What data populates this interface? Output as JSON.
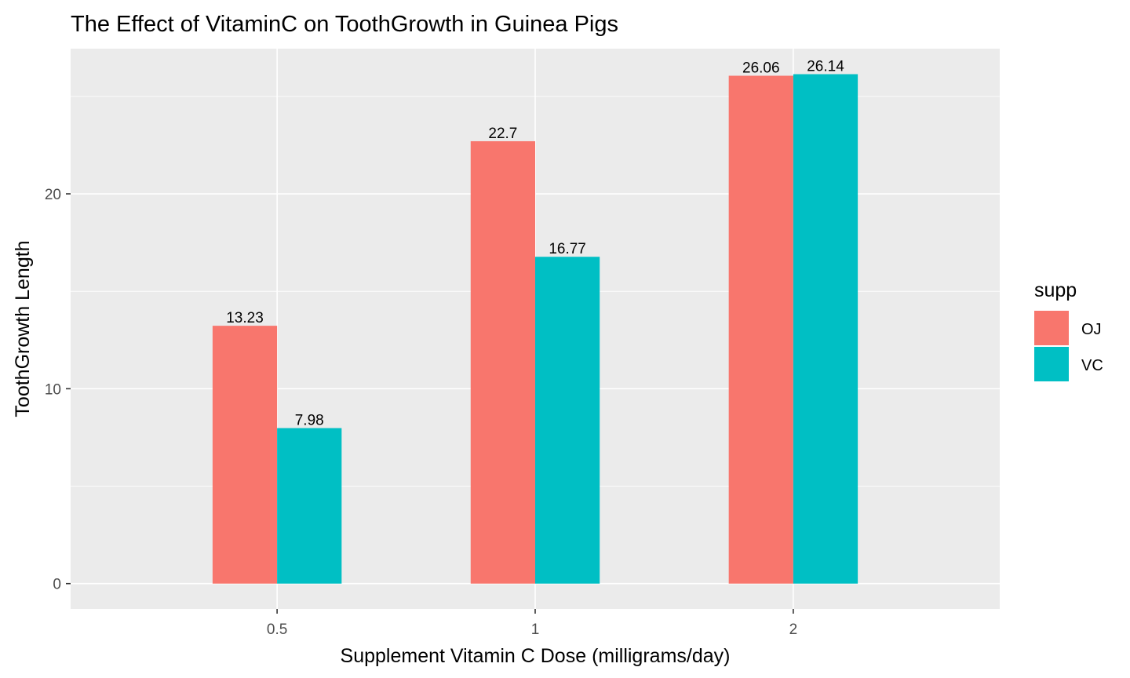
{
  "chart_data": {
    "type": "bar",
    "title": "The Effect of VitaminC on ToothGrowth in Guinea Pigs",
    "xlabel": "Supplement Vitamin C Dose (milligrams/day)",
    "ylabel": "ToothGrowth Length",
    "categories": [
      "0.5",
      "1",
      "2"
    ],
    "series": [
      {
        "name": "OJ",
        "color": "#F8766D",
        "values": [
          13.23,
          22.7,
          26.06
        ],
        "labels": [
          "13.23",
          "22.7",
          "26.06"
        ]
      },
      {
        "name": "VC",
        "color": "#00BFC4",
        "values": [
          7.98,
          16.77,
          26.14
        ],
        "labels": [
          "7.98",
          "16.77",
          "26.14"
        ]
      }
    ],
    "ylim": [
      -1.3,
      27.45
    ],
    "yticks": [
      0,
      10,
      20
    ],
    "ytick_labels": [
      "0",
      "10",
      "20"
    ],
    "grid": true,
    "panel_background": "#EBEBEB",
    "grid_color": "#FFFFFF",
    "legend": {
      "title": "supp",
      "position": "right"
    }
  }
}
